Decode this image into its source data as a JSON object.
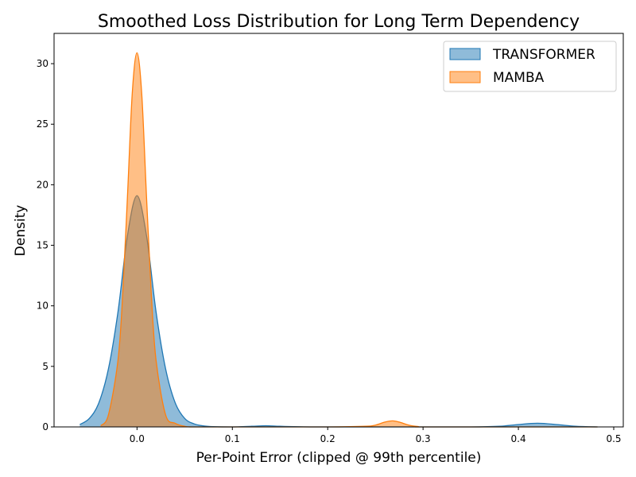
{
  "chart_data": {
    "type": "area",
    "title": "Smoothed Loss Distribution for Long Term Dependency",
    "xlabel": "Per-Point Error (clipped @ 99th percentile)",
    "ylabel": "Density",
    "xlim": [
      -0.087,
      0.51
    ],
    "ylim": [
      0,
      32.5
    ],
    "x_ticks": [
      0.0,
      0.1,
      0.2,
      0.3,
      0.4,
      0.5
    ],
    "x_tick_labels": [
      "0.0",
      "0.1",
      "0.2",
      "0.3",
      "0.4",
      "0.5"
    ],
    "y_ticks": [
      0,
      5,
      10,
      15,
      20,
      25,
      30
    ],
    "y_tick_labels": [
      "0",
      "5",
      "10",
      "15",
      "20",
      "25",
      "30"
    ],
    "grid": false,
    "legend_position": "top-right",
    "series": [
      {
        "name": "TRANSFORMER",
        "color": "#1f77b4",
        "fill_opacity": 0.5,
        "x": [
          -0.06,
          -0.05,
          -0.04,
          -0.03,
          -0.02,
          -0.01,
          0.0,
          0.01,
          0.02,
          0.03,
          0.04,
          0.05,
          0.06,
          0.07,
          0.08,
          0.1,
          0.12,
          0.135,
          0.15,
          0.17,
          0.2,
          0.25,
          0.3,
          0.35,
          0.38,
          0.4,
          0.42,
          0.44,
          0.46,
          0.483
        ],
        "y": [
          0.2,
          0.7,
          2.0,
          4.8,
          9.5,
          15.8,
          19.1,
          15.8,
          9.5,
          4.8,
          2.0,
          0.7,
          0.25,
          0.08,
          0.02,
          0.0,
          0.05,
          0.1,
          0.05,
          0.01,
          0.0,
          0.0,
          0.0,
          0.0,
          0.05,
          0.2,
          0.3,
          0.2,
          0.05,
          0.0
        ]
      },
      {
        "name": "MAMBA",
        "color": "#ff7f0e",
        "fill_opacity": 0.5,
        "x": [
          -0.038,
          -0.03,
          -0.02,
          -0.015,
          -0.01,
          -0.005,
          0.0,
          0.005,
          0.01,
          0.015,
          0.02,
          0.03,
          0.04,
          0.05,
          0.06,
          0.1,
          0.2,
          0.24,
          0.25,
          0.26,
          0.268,
          0.275,
          0.285,
          0.295,
          0.3,
          0.4,
          0.483
        ],
        "y": [
          0.1,
          1.0,
          5.5,
          11.0,
          19.0,
          27.5,
          30.9,
          27.5,
          19.0,
          11.0,
          5.5,
          1.0,
          0.3,
          0.05,
          0.0,
          0.0,
          0.0,
          0.05,
          0.15,
          0.4,
          0.5,
          0.4,
          0.15,
          0.03,
          0.0,
          0.0,
          0.0
        ]
      }
    ]
  }
}
